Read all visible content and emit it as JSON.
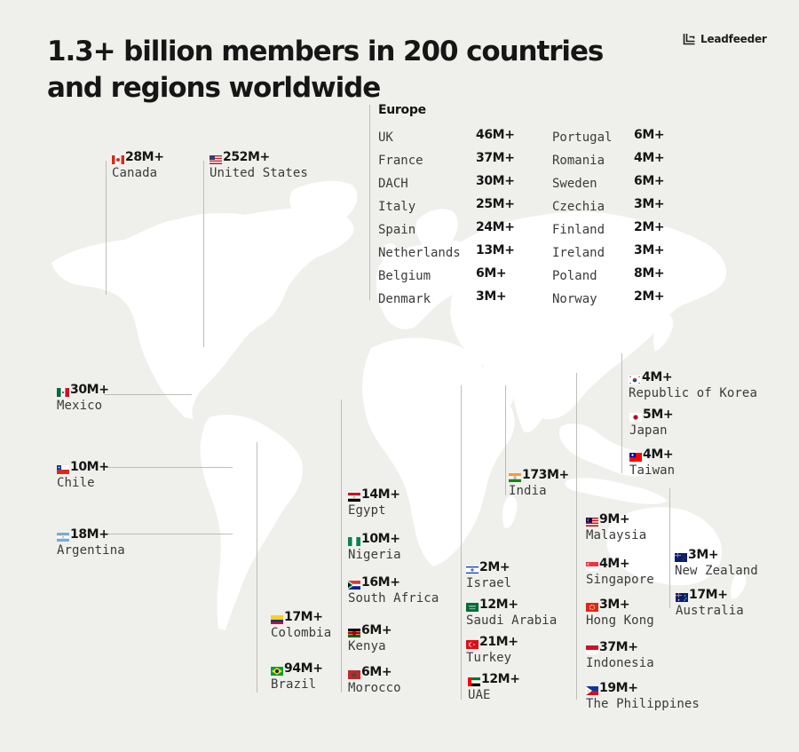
{
  "title": "1.3+ billion members in 200 countries and regions worldwide",
  "brand": {
    "name": "Leadfeeder"
  },
  "colors": {
    "background": "#eff0eb",
    "map_land": "#ffffff",
    "leader_line": "#bdbdb8",
    "text": "#151515"
  },
  "europe": {
    "heading": "Europe",
    "left_column": [
      {
        "name": "UK",
        "value": "46M+"
      },
      {
        "name": "France",
        "value": "37M+"
      },
      {
        "name": "DACH",
        "value": "30M+"
      },
      {
        "name": "Italy",
        "value": "25M+"
      },
      {
        "name": "Spain",
        "value": "24M+"
      },
      {
        "name": "Netherlands",
        "value": "13M+"
      },
      {
        "name": "Belgium",
        "value": "6M+"
      },
      {
        "name": "Denmark",
        "value": "3M+"
      }
    ],
    "right_column": [
      {
        "name": "Portugal",
        "value": "6M+"
      },
      {
        "name": "Romania",
        "value": "4M+"
      },
      {
        "name": "Sweden",
        "value": "6M+"
      },
      {
        "name": "Czechia",
        "value": "3M+"
      },
      {
        "name": "Finland",
        "value": "2M+"
      },
      {
        "name": "Ireland",
        "value": "3M+"
      },
      {
        "name": "Poland",
        "value": "8M+"
      },
      {
        "name": "Norway",
        "value": "2M+"
      }
    ]
  },
  "countries": [
    {
      "key": "canada",
      "name": "Canada",
      "value": "28M+",
      "flag": "canada-flag"
    },
    {
      "key": "united-states",
      "name": "United States",
      "value": "252M+",
      "flag": "us-flag"
    },
    {
      "key": "mexico",
      "name": "Mexico",
      "value": "30M+",
      "flag": "mexico-flag"
    },
    {
      "key": "chile",
      "name": "Chile",
      "value": "10M+",
      "flag": "chile-flag"
    },
    {
      "key": "argentina",
      "name": "Argentina",
      "value": "18M+",
      "flag": "argentina-flag"
    },
    {
      "key": "colombia",
      "name": "Colombia",
      "value": "17M+",
      "flag": "colombia-flag"
    },
    {
      "key": "brazil",
      "name": "Brazil",
      "value": "94M+",
      "flag": "brazil-flag"
    },
    {
      "key": "egypt",
      "name": "Egypt",
      "value": "14M+",
      "flag": "egypt-flag"
    },
    {
      "key": "nigeria",
      "name": "Nigeria",
      "value": "10M+",
      "flag": "nigeria-flag"
    },
    {
      "key": "south-africa",
      "name": "South Africa",
      "value": "16M+",
      "flag": "south-africa-flag"
    },
    {
      "key": "kenya",
      "name": "Kenya",
      "value": "6M+",
      "flag": "kenya-flag"
    },
    {
      "key": "morocco",
      "name": "Morocco",
      "value": "6M+",
      "flag": "morocco-flag"
    },
    {
      "key": "israel",
      "name": "Israel",
      "value": "2M+",
      "flag": "israel-flag"
    },
    {
      "key": "saudi-arabia",
      "name": "Saudi Arabia",
      "value": "12M+",
      "flag": "saudi-arabia-flag"
    },
    {
      "key": "turkey",
      "name": "Turkey",
      "value": "21M+",
      "flag": "turkey-flag"
    },
    {
      "key": "uae",
      "name": "UAE",
      "value": "12M+",
      "flag": "uae-flag"
    },
    {
      "key": "india",
      "name": "India",
      "value": "173M+",
      "flag": "india-flag"
    },
    {
      "key": "republic-of-korea",
      "name": "Republic of Korea",
      "value": "4M+",
      "flag": "korea-flag"
    },
    {
      "key": "japan",
      "name": "Japan",
      "value": "5M+",
      "flag": "japan-flag"
    },
    {
      "key": "taiwan",
      "name": "Taiwan",
      "value": "4M+",
      "flag": "taiwan-flag"
    },
    {
      "key": "malaysia",
      "name": "Malaysia",
      "value": "9M+",
      "flag": "malaysia-flag"
    },
    {
      "key": "singapore",
      "name": "Singapore",
      "value": "4M+",
      "flag": "singapore-flag"
    },
    {
      "key": "hong-kong",
      "name": "Hong Kong",
      "value": "3M+",
      "flag": "hong-kong-flag"
    },
    {
      "key": "indonesia",
      "name": "Indonesia",
      "value": "37M+",
      "flag": "indonesia-flag"
    },
    {
      "key": "the-philippines",
      "name": "The Philippines",
      "value": "19M+",
      "flag": "philippines-flag"
    },
    {
      "key": "new-zealand",
      "name": "New Zealand",
      "value": "3M+",
      "flag": "new-zealand-flag"
    },
    {
      "key": "australia",
      "name": "Australia",
      "value": "17M+",
      "flag": "australia-flag"
    }
  ]
}
